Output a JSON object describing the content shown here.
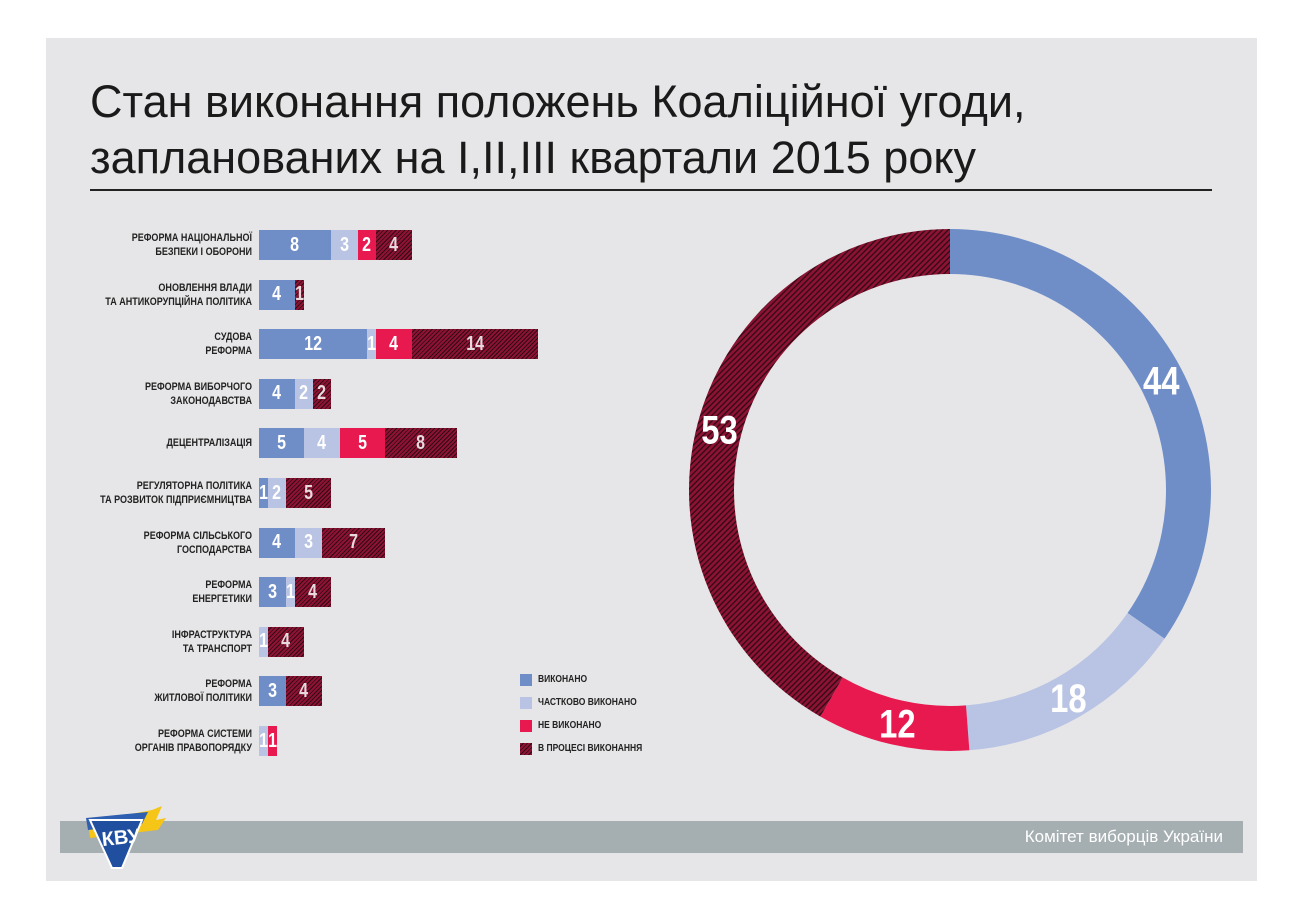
{
  "title": {
    "line1": "Стан виконання положень Коаліційної угоди,",
    "line2": "запланованих на I,II,III квартали 2015 року"
  },
  "colors": {
    "done": "#6f8ec8",
    "partial": "#b9c4e4",
    "not_done": "#e8194f",
    "in_process": "#8e1233"
  },
  "chart_data": [
    {
      "type": "bar",
      "orientation": "horizontal",
      "stacked": true,
      "categories": [
        "РЕФОРМА НАЦІОНАЛЬНОЇ|БЕЗПЕКИ І ОБОРОНИ",
        "ОНОВЛЕННЯ ВЛАДИ|ТА АНТИКОРУПЦІЙНА ПОЛІТИКА",
        "СУДОВА|РЕФОРМА",
        "РЕФОРМА ВИБОРЧОГО|ЗАКОНОДАВСТВА",
        "ДЕЦЕНТРАЛІЗАЦІЯ",
        "РЕГУЛЯТОРНА ПОЛІТИКА|ТА РОЗВИТОК ПІДПРИЄМНИЦТВА",
        "РЕФОРМА СІЛЬСЬКОГО|ГОСПОДАРСТВА",
        "РЕФОРМА|ЕНЕРГЕТИКИ",
        "ІНФРАСТРУКТУРА|ТА ТРАНСПОРТ",
        "РЕФОРМА|ЖИТЛОВОЇ ПОЛІТИКИ",
        "РЕФОРМА СИСТЕМИ|ОРГАНІВ ПРАВОПОРЯДКУ"
      ],
      "series": [
        {
          "name": "ВИКОНАНО",
          "key": "done",
          "values": [
            8,
            4,
            12,
            4,
            5,
            1,
            4,
            3,
            0,
            3,
            0
          ]
        },
        {
          "name": "ЧАСТКОВО ВИКОНАНО",
          "key": "partial",
          "values": [
            3,
            0,
            1,
            2,
            4,
            2,
            3,
            1,
            1,
            0,
            1
          ]
        },
        {
          "name": "НЕ ВИКОНАНО",
          "key": "not_done",
          "values": [
            2,
            0,
            4,
            0,
            5,
            0,
            0,
            0,
            0,
            0,
            1
          ]
        },
        {
          "name": "В ПРОЦЕСІ ВИКОНАННЯ",
          "key": "in_process",
          "values": [
            4,
            1,
            14,
            2,
            8,
            5,
            7,
            4,
            4,
            4,
            0
          ]
        }
      ],
      "legend_position": "bottom-right"
    },
    {
      "type": "pie",
      "donut": true,
      "labels": [
        "ВИКОНАНО",
        "ЧАСТКОВО ВИКОНАНО",
        "НЕ ВИКОНАНО",
        "В ПРОЦЕСІ ВИКОНАННЯ"
      ],
      "keys": [
        "done",
        "partial",
        "not_done",
        "in_process"
      ],
      "values": [
        44,
        18,
        12,
        53
      ]
    }
  ],
  "footer": {
    "organization": "Комітет виборців України"
  },
  "logo": {
    "icon": "kvu-logo-icon",
    "text": "КВУ"
  }
}
